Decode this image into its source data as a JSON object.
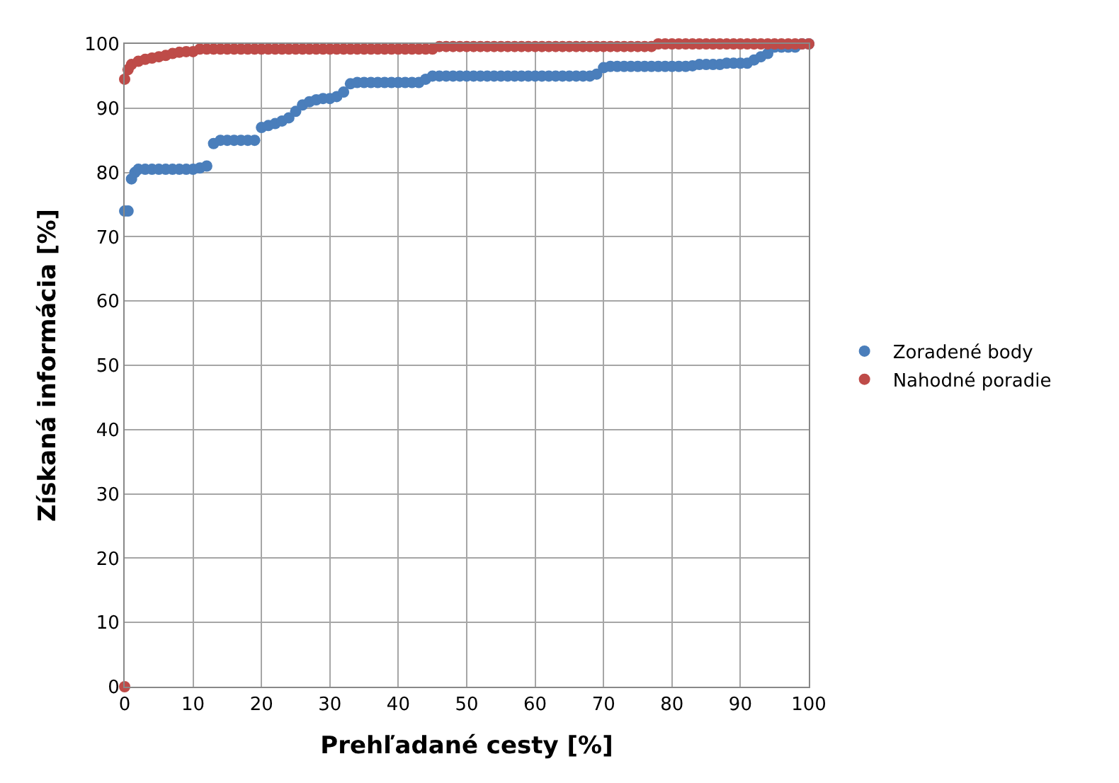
{
  "chart_data": {
    "type": "scatter",
    "xlabel": "Prehľadané cesty [%]",
    "ylabel": "Získaná informácia [%]",
    "xlim": [
      0,
      100
    ],
    "xticks": [
      0,
      10,
      20,
      30,
      40,
      50,
      60,
      70,
      80,
      90,
      100
    ],
    "ylim": [
      0,
      100
    ],
    "yticks": [
      0,
      10,
      20,
      30,
      40,
      50,
      60,
      70,
      80,
      90,
      100
    ],
    "grid": true,
    "legend": "right",
    "marker": "circle",
    "series": [
      {
        "name": "Zoradené body",
        "color": "#4a7ebb",
        "x": [
          0,
          0.5,
          1,
          1.5,
          2,
          3,
          4,
          5,
          6,
          7,
          8,
          9,
          10,
          11,
          12,
          13,
          14,
          15,
          16,
          17,
          18,
          19,
          20,
          21,
          22,
          23,
          24,
          25,
          26,
          27,
          28,
          29,
          30,
          31,
          32,
          33,
          34,
          35,
          36,
          37,
          38,
          39,
          40,
          41,
          42,
          43,
          44,
          45,
          46,
          47,
          48,
          49,
          50,
          51,
          52,
          53,
          54,
          55,
          56,
          57,
          58,
          59,
          60,
          61,
          62,
          63,
          64,
          65,
          66,
          67,
          68,
          69,
          70,
          71,
          72,
          73,
          74,
          75,
          76,
          77,
          78,
          79,
          80,
          81,
          82,
          83,
          84,
          85,
          86,
          87,
          88,
          89,
          90,
          91,
          92,
          93,
          94,
          95,
          96,
          97,
          98,
          99,
          100
        ],
        "values": [
          74,
          74,
          79,
          80,
          80.5,
          80.5,
          80.5,
          80.5,
          80.5,
          80.5,
          80.5,
          80.5,
          80.5,
          80.7,
          81,
          84.5,
          85,
          85,
          85,
          85,
          85,
          85,
          87,
          87.3,
          87.6,
          88,
          88.5,
          89.5,
          90.5,
          91,
          91.3,
          91.5,
          91.5,
          91.8,
          92.5,
          93.8,
          94,
          94,
          94,
          94,
          94,
          94,
          94,
          94,
          94,
          94,
          94.5,
          95,
          95,
          95,
          95,
          95,
          95,
          95,
          95,
          95,
          95,
          95,
          95,
          95,
          95,
          95,
          95,
          95,
          95,
          95,
          95,
          95,
          95,
          95,
          95,
          95.3,
          96.3,
          96.5,
          96.5,
          96.5,
          96.5,
          96.5,
          96.5,
          96.5,
          96.5,
          96.5,
          96.5,
          96.5,
          96.5,
          96.6,
          96.8,
          96.8,
          96.8,
          96.8,
          97,
          97,
          97,
          97,
          97.5,
          98,
          98.5,
          99.5,
          99.5,
          99.5,
          99.5,
          100,
          100
        ]
      },
      {
        "name": "Nahodné poradie",
        "color": "#be4b48",
        "x": [
          0,
          0,
          0.5,
          1,
          2,
          3,
          4,
          5,
          6,
          7,
          8,
          9,
          10,
          11,
          12,
          13,
          14,
          15,
          16,
          17,
          18,
          19,
          20,
          21,
          22,
          23,
          24,
          25,
          26,
          27,
          28,
          29,
          30,
          31,
          32,
          33,
          34,
          35,
          36,
          37,
          38,
          39,
          40,
          41,
          42,
          43,
          44,
          45,
          46,
          47,
          48,
          49,
          50,
          51,
          52,
          53,
          54,
          55,
          56,
          57,
          58,
          59,
          60,
          61,
          62,
          63,
          64,
          65,
          66,
          67,
          68,
          69,
          70,
          71,
          72,
          73,
          74,
          75,
          76,
          77,
          78,
          79,
          80,
          81,
          82,
          83,
          84,
          85,
          86,
          87,
          88,
          89,
          90,
          91,
          92,
          93,
          94,
          95,
          96,
          97,
          98,
          99,
          100
        ],
        "values": [
          0,
          94.5,
          96,
          96.8,
          97.3,
          97.6,
          97.8,
          98,
          98.2,
          98.5,
          98.7,
          98.8,
          98.8,
          99.2,
          99.2,
          99.2,
          99.2,
          99.2,
          99.2,
          99.2,
          99.2,
          99.2,
          99.2,
          99.2,
          99.2,
          99.2,
          99.2,
          99.2,
          99.2,
          99.2,
          99.2,
          99.2,
          99.2,
          99.2,
          99.2,
          99.2,
          99.2,
          99.2,
          99.2,
          99.2,
          99.2,
          99.2,
          99.2,
          99.2,
          99.2,
          99.2,
          99.2,
          99.2,
          99.6,
          99.6,
          99.6,
          99.6,
          99.6,
          99.6,
          99.6,
          99.6,
          99.6,
          99.6,
          99.6,
          99.6,
          99.6,
          99.6,
          99.6,
          99.6,
          99.6,
          99.6,
          99.6,
          99.6,
          99.6,
          99.6,
          99.6,
          99.6,
          99.6,
          99.6,
          99.6,
          99.6,
          99.6,
          99.6,
          99.6,
          99.6,
          100,
          100,
          100,
          100,
          100,
          100,
          100,
          100,
          100,
          100,
          100,
          100,
          100,
          100,
          100,
          100,
          100,
          100,
          100,
          100,
          100,
          100,
          100
        ]
      }
    ]
  }
}
